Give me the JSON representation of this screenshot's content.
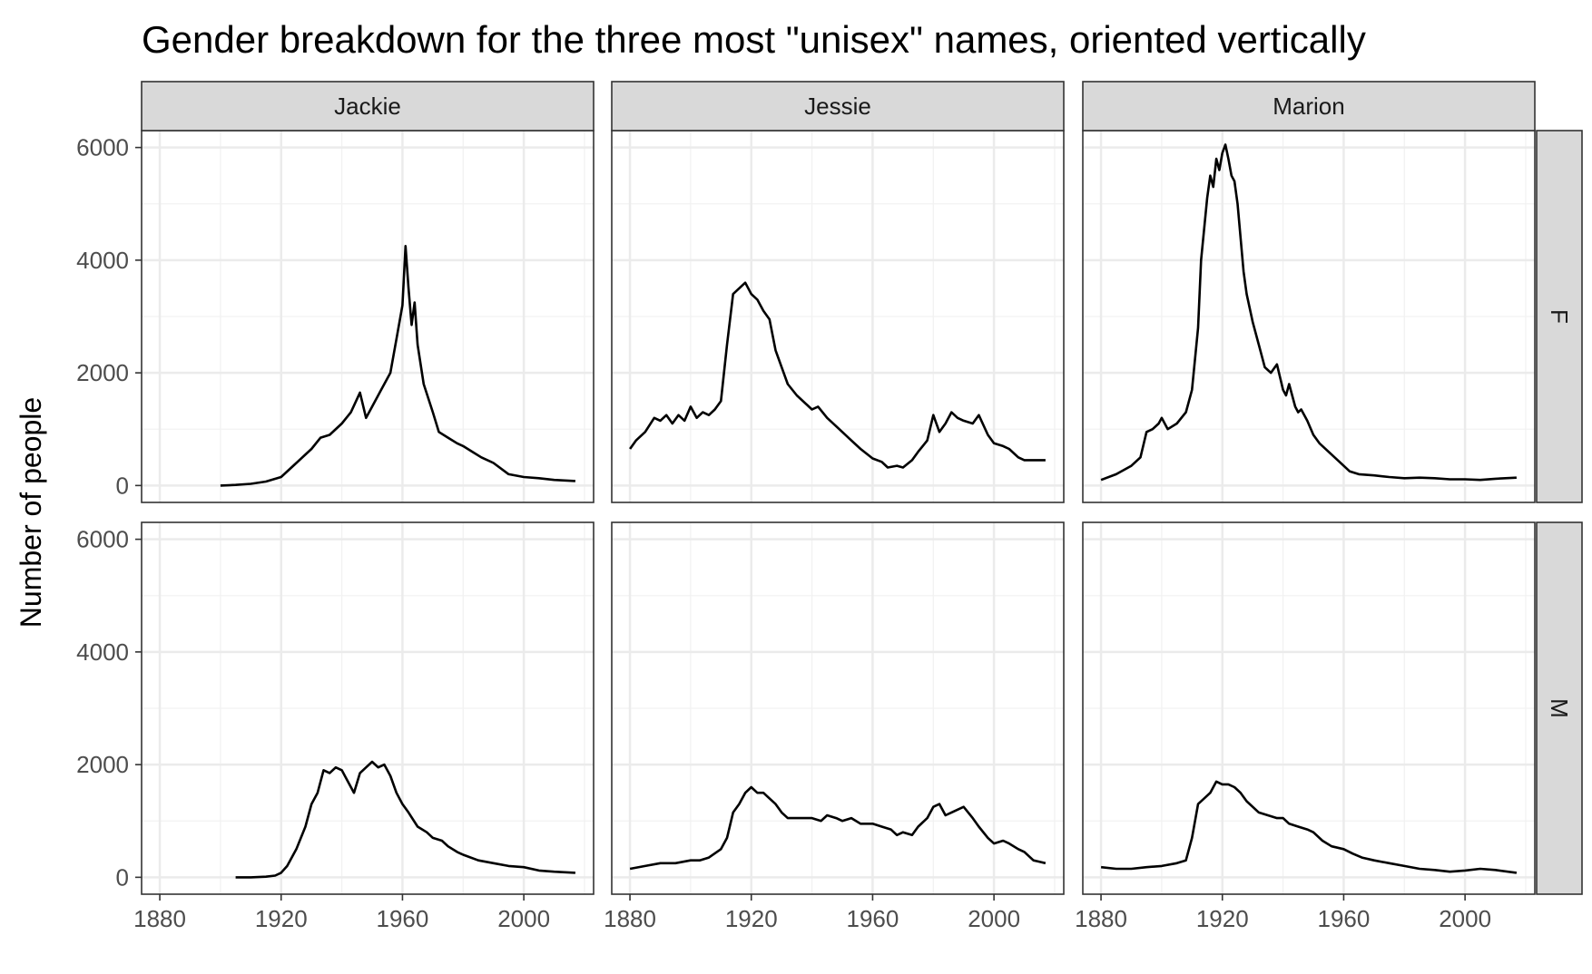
{
  "chart_data": {
    "type": "line",
    "title": "Gender breakdown for the three most \"unisex\" names, oriented vertically",
    "xlabel": "",
    "ylabel": "Number of people",
    "xlim": [
      1874,
      2023
    ],
    "ylim": [
      -300,
      6300
    ],
    "x_ticks": [
      1880,
      1920,
      1960,
      2000
    ],
    "y_ticks": [
      0,
      2000,
      4000,
      6000
    ],
    "grid": true,
    "line_color": "#000000",
    "strip_fill": "#d9d9d9",
    "columns": [
      "Jackie",
      "Jessie",
      "Marion"
    ],
    "rows": [
      "F",
      "M"
    ],
    "panels": [
      {
        "name": "Jackie",
        "sex": "F",
        "x": [
          1900,
          1905,
          1910,
          1915,
          1920,
          1925,
          1930,
          1933,
          1936,
          1940,
          1943,
          1946,
          1948,
          1950,
          1953,
          1956,
          1958,
          1960,
          1961,
          1962,
          1963,
          1964,
          1965,
          1967,
          1970,
          1972,
          1975,
          1978,
          1980,
          1983,
          1986,
          1990,
          1995,
          2000,
          2005,
          2010,
          2017
        ],
        "y": [
          0,
          10,
          30,
          70,
          150,
          400,
          650,
          850,
          900,
          1100,
          1300,
          1650,
          1200,
          1400,
          1700,
          2000,
          2600,
          3200,
          4250,
          3500,
          2850,
          3250,
          2500,
          1800,
          1300,
          950,
          850,
          750,
          700,
          600,
          500,
          400,
          200,
          150,
          130,
          100,
          80
        ]
      },
      {
        "name": "Jessie",
        "sex": "F",
        "x": [
          1880,
          1882,
          1885,
          1888,
          1890,
          1892,
          1894,
          1896,
          1898,
          1900,
          1902,
          1904,
          1906,
          1908,
          1910,
          1912,
          1914,
          1916,
          1918,
          1920,
          1922,
          1924,
          1926,
          1928,
          1930,
          1932,
          1935,
          1938,
          1940,
          1942,
          1945,
          1948,
          1950,
          1953,
          1956,
          1960,
          1963,
          1965,
          1968,
          1970,
          1973,
          1975,
          1978,
          1980,
          1982,
          1984,
          1986,
          1988,
          1990,
          1993,
          1995,
          1998,
          2000,
          2003,
          2005,
          2008,
          2010,
          2013,
          2017
        ],
        "y": [
          650,
          800,
          950,
          1200,
          1150,
          1250,
          1100,
          1250,
          1150,
          1400,
          1200,
          1300,
          1250,
          1350,
          1500,
          2500,
          3400,
          3500,
          3600,
          3400,
          3300,
          3100,
          2950,
          2400,
          2100,
          1800,
          1600,
          1450,
          1350,
          1400,
          1200,
          1050,
          950,
          800,
          650,
          480,
          420,
          320,
          350,
          320,
          450,
          600,
          800,
          1250,
          950,
          1100,
          1300,
          1200,
          1150,
          1100,
          1250,
          900,
          750,
          700,
          650,
          500,
          450,
          450,
          450
        ]
      },
      {
        "name": "Marion",
        "sex": "F",
        "x": [
          1880,
          1885,
          1890,
          1893,
          1895,
          1897,
          1899,
          1900,
          1902,
          1905,
          1908,
          1910,
          1912,
          1913,
          1915,
          1916,
          1917,
          1918,
          1919,
          1920,
          1921,
          1922,
          1923,
          1924,
          1925,
          1926,
          1927,
          1928,
          1930,
          1932,
          1934,
          1936,
          1938,
          1940,
          1941,
          1942,
          1944,
          1945,
          1946,
          1948,
          1950,
          1952,
          1955,
          1958,
          1960,
          1962,
          1965,
          1970,
          1975,
          1980,
          1985,
          1990,
          1995,
          2000,
          2005,
          2010,
          2017
        ],
        "y": [
          100,
          200,
          350,
          500,
          950,
          1000,
          1100,
          1200,
          1000,
          1100,
          1300,
          1700,
          2800,
          4000,
          5100,
          5500,
          5300,
          5800,
          5600,
          5900,
          6050,
          5800,
          5500,
          5400,
          5000,
          4400,
          3800,
          3400,
          2900,
          2500,
          2100,
          2000,
          2150,
          1700,
          1600,
          1800,
          1400,
          1300,
          1350,
          1150,
          900,
          750,
          600,
          450,
          350,
          250,
          200,
          180,
          150,
          130,
          140,
          130,
          110,
          110,
          100,
          120,
          140
        ]
      },
      {
        "name": "Jackie",
        "sex": "M",
        "x": [
          1905,
          1910,
          1915,
          1918,
          1920,
          1922,
          1925,
          1928,
          1930,
          1932,
          1934,
          1936,
          1938,
          1940,
          1942,
          1944,
          1946,
          1948,
          1950,
          1952,
          1954,
          1956,
          1958,
          1960,
          1962,
          1965,
          1968,
          1970,
          1973,
          1975,
          1978,
          1980,
          1985,
          1990,
          1995,
          2000,
          2005,
          2010,
          2017
        ],
        "y": [
          0,
          0,
          10,
          30,
          80,
          200,
          500,
          900,
          1300,
          1500,
          1900,
          1850,
          1950,
          1900,
          1700,
          1500,
          1850,
          1950,
          2050,
          1950,
          2000,
          1800,
          1500,
          1300,
          1150,
          900,
          800,
          700,
          650,
          550,
          450,
          400,
          300,
          250,
          200,
          180,
          120,
          100,
          80
        ]
      },
      {
        "name": "Jessie",
        "sex": "M",
        "x": [
          1880,
          1885,
          1890,
          1895,
          1900,
          1903,
          1906,
          1910,
          1912,
          1914,
          1916,
          1918,
          1920,
          1922,
          1924,
          1926,
          1928,
          1930,
          1932,
          1935,
          1938,
          1940,
          1943,
          1945,
          1948,
          1950,
          1953,
          1956,
          1960,
          1963,
          1966,
          1968,
          1970,
          1973,
          1975,
          1978,
          1980,
          1982,
          1984,
          1986,
          1988,
          1990,
          1993,
          1995,
          1998,
          2000,
          2003,
          2005,
          2008,
          2010,
          2013,
          2017
        ],
        "y": [
          150,
          200,
          250,
          250,
          300,
          300,
          350,
          500,
          700,
          1150,
          1300,
          1500,
          1600,
          1500,
          1500,
          1400,
          1300,
          1150,
          1050,
          1050,
          1050,
          1050,
          1000,
          1100,
          1050,
          1000,
          1050,
          950,
          950,
          900,
          850,
          750,
          800,
          750,
          900,
          1050,
          1250,
          1300,
          1100,
          1150,
          1200,
          1250,
          1050,
          900,
          700,
          600,
          650,
          600,
          500,
          450,
          300,
          250
        ]
      },
      {
        "name": "Marion",
        "sex": "M",
        "x": [
          1880,
          1885,
          1890,
          1895,
          1900,
          1905,
          1908,
          1910,
          1912,
          1914,
          1916,
          1918,
          1920,
          1922,
          1924,
          1926,
          1928,
          1930,
          1932,
          1935,
          1938,
          1940,
          1942,
          1945,
          1948,
          1950,
          1953,
          1956,
          1960,
          1963,
          1966,
          1970,
          1975,
          1980,
          1985,
          1990,
          1995,
          2000,
          2005,
          2010,
          2017
        ],
        "y": [
          180,
          150,
          150,
          180,
          200,
          250,
          300,
          700,
          1300,
          1400,
          1500,
          1700,
          1650,
          1650,
          1600,
          1500,
          1350,
          1250,
          1150,
          1100,
          1050,
          1050,
          950,
          900,
          850,
          800,
          650,
          550,
          500,
          420,
          350,
          300,
          250,
          200,
          150,
          130,
          100,
          120,
          150,
          130,
          80
        ]
      }
    ]
  }
}
